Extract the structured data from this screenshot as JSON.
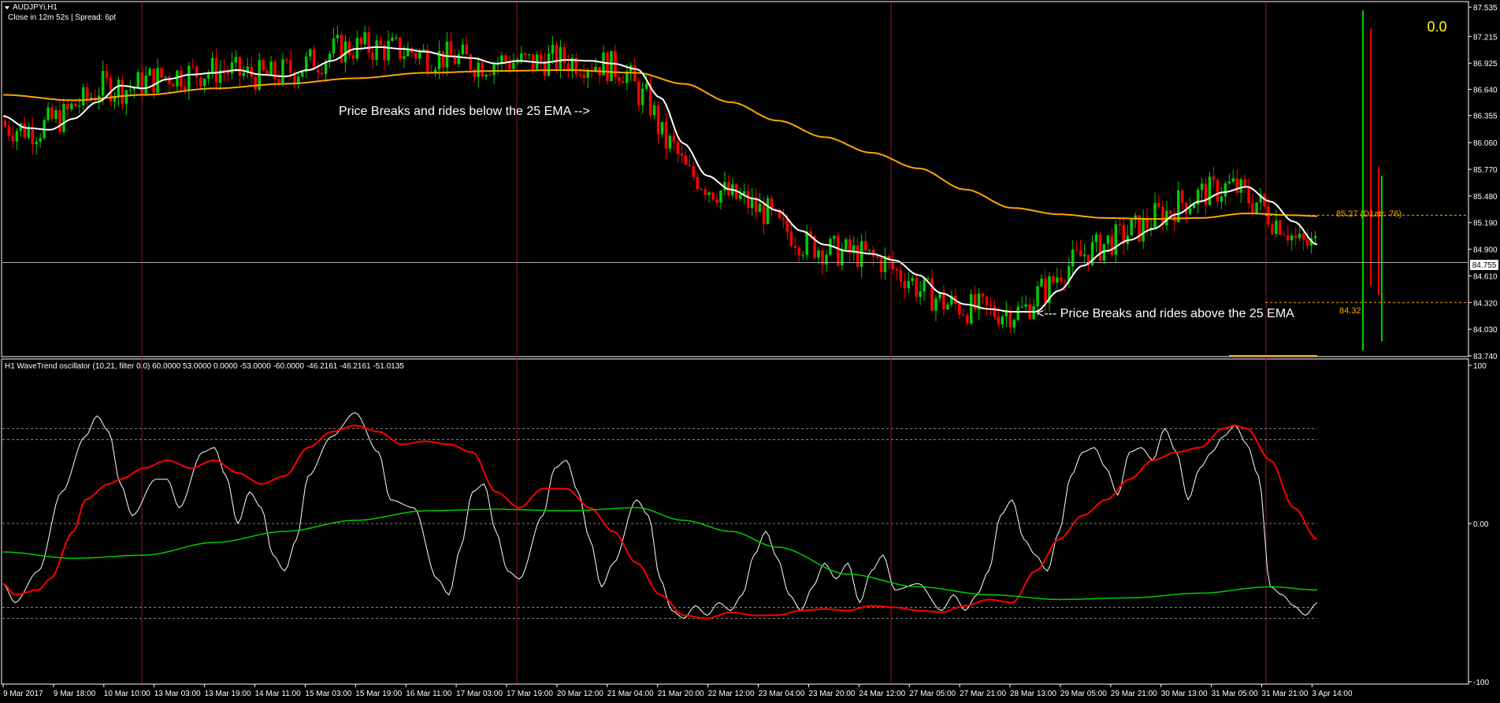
{
  "window": {
    "symbol_title": "AUDJPYi,H1",
    "info_line": "Close in 12m 52s | Spread: 6pt",
    "top_right_value": "0.0"
  },
  "annotations": {
    "break_below": "Price Breaks and rides below the 25 EMA -->",
    "break_above": "<--- Price Breaks and rides above the 25 EMA",
    "atr_label": "85.27  (D1atr: 76)",
    "low_level_label": "84.32"
  },
  "oscillator_header": "H1 WaveTrend oscillator (10,21, filter 0.0) 60.0000 53.0000 0.0000 -53.0000 -60.0000 -46.2161 -46.2161 -51.0135",
  "colors": {
    "background": "#000000",
    "bull_candle": "#00cc00",
    "bear_candle": "#ff0000",
    "ema25": "#ffffff",
    "ema_long": "#ffa500",
    "wt_fast": "#ffffff",
    "wt_slow": "#ff0000",
    "wt_trend": "#00cc00",
    "separator": "#8b1a1a",
    "accent_value": "#ffff00",
    "annotation_orange": "#ffa500"
  },
  "chart_data": [
    {
      "type": "candlestick",
      "title": "AUDJPYi,H1",
      "ylim": [
        83.74,
        87.535
      ],
      "y_ticks": [
        "87.535",
        "87.215",
        "86.925",
        "86.640",
        "86.355",
        "86.060",
        "85.770",
        "85.480",
        "85.190",
        "84.900",
        "84.610",
        "84.320",
        "84.030",
        "83.740"
      ],
      "current_price": "84.755",
      "current_price_value": 84.755,
      "level_upper": 85.27,
      "level_lower": 84.32,
      "x_labels": [
        "9 Mar 2017",
        "9 Mar 18:00",
        "10 Mar 10:00",
        "13 Mar 03:00",
        "13 Mar 19:00",
        "14 Mar 11:00",
        "15 Mar 03:00",
        "15 Mar 19:00",
        "16 Mar 11:00",
        "17 Mar 03:00",
        "17 Mar 19:00",
        "20 Mar 12:00",
        "21 Mar 04:00",
        "21 Mar 20:00",
        "22 Mar 12:00",
        "23 Mar 04:00",
        "23 Mar 20:00",
        "24 Mar 12:00",
        "27 Mar 05:00",
        "27 Mar 21:00",
        "28 Mar 13:00",
        "29 Mar 05:00",
        "29 Mar 21:00",
        "30 Mar 13:00",
        "31 Mar 05:00",
        "31 Mar 21:00",
        "3 Apr 14:00"
      ],
      "ema25_knots": [
        [
          0,
          86.35
        ],
        [
          2,
          86.22
        ],
        [
          4,
          86.2
        ],
        [
          6,
          86.32
        ],
        [
          8,
          86.5
        ],
        [
          10,
          86.68
        ],
        [
          12,
          86.65
        ],
        [
          14,
          86.75
        ],
        [
          16,
          86.8
        ],
        [
          18,
          86.82
        ],
        [
          20,
          86.85
        ],
        [
          22,
          86.8
        ],
        [
          24,
          86.78
        ],
        [
          26,
          86.85
        ],
        [
          28,
          86.95
        ],
        [
          30,
          87.08
        ],
        [
          32,
          87.1
        ],
        [
          34,
          87.08
        ],
        [
          36,
          87.05
        ],
        [
          38,
          87.0
        ],
        [
          40,
          86.98
        ],
        [
          42,
          86.92
        ],
        [
          44,
          86.95
        ],
        [
          46,
          86.93
        ],
        [
          48,
          86.96
        ],
        [
          50,
          86.95
        ],
        [
          52,
          86.92
        ],
        [
          54,
          86.86
        ],
        [
          56,
          86.55
        ],
        [
          58,
          86.05
        ],
        [
          60,
          85.7
        ],
        [
          62,
          85.55
        ],
        [
          64,
          85.45
        ],
        [
          66,
          85.32
        ],
        [
          68,
          85.1
        ],
        [
          70,
          84.95
        ],
        [
          72,
          84.88
        ],
        [
          74,
          84.85
        ],
        [
          76,
          84.78
        ],
        [
          78,
          84.62
        ],
        [
          80,
          84.42
        ],
        [
          82,
          84.3
        ],
        [
          84,
          84.25
        ],
        [
          86,
          84.22
        ],
        [
          88,
          84.22
        ],
        [
          90,
          84.45
        ],
        [
          92,
          84.72
        ],
        [
          94,
          84.88
        ],
        [
          96,
          85.0
        ],
        [
          98,
          85.12
        ],
        [
          100,
          85.28
        ],
        [
          102,
          85.42
        ],
        [
          104,
          85.52
        ],
        [
          106,
          85.58
        ],
        [
          108,
          85.42
        ],
        [
          110,
          85.2
        ],
        [
          112,
          84.95
        ]
      ],
      "ema_long_knots": [
        [
          0,
          86.58
        ],
        [
          6,
          86.52
        ],
        [
          12,
          86.58
        ],
        [
          18,
          86.65
        ],
        [
          24,
          86.7
        ],
        [
          30,
          86.76
        ],
        [
          36,
          86.82
        ],
        [
          42,
          86.84
        ],
        [
          48,
          86.85
        ],
        [
          54,
          86.82
        ],
        [
          58,
          86.7
        ],
        [
          62,
          86.5
        ],
        [
          66,
          86.3
        ],
        [
          70,
          86.12
        ],
        [
          74,
          85.95
        ],
        [
          78,
          85.78
        ],
        [
          82,
          85.55
        ],
        [
          86,
          85.35
        ],
        [
          90,
          85.28
        ],
        [
          94,
          85.24
        ],
        [
          98,
          85.23
        ],
        [
          102,
          85.24
        ],
        [
          106,
          85.29
        ],
        [
          110,
          85.27
        ],
        [
          112,
          85.26
        ]
      ]
    },
    {
      "type": "line",
      "title": "H1 WaveTrend oscillator (10,21, filter 0.0)",
      "ylim": [
        -100,
        100
      ],
      "y_ticks": [
        "100",
        "0.00",
        "-100"
      ],
      "levels": [
        60,
        53,
        0,
        -53,
        -60
      ],
      "series": [
        {
          "name": "wt1",
          "knots": [
            [
              0,
              -38
            ],
            [
              1,
              -50
            ],
            [
              3,
              -30
            ],
            [
              5,
              20
            ],
            [
              7,
              55
            ],
            [
              8,
              68
            ],
            [
              9,
              58
            ],
            [
              10,
              25
            ],
            [
              11,
              5
            ],
            [
              13,
              28
            ],
            [
              14,
              28
            ],
            [
              15,
              10
            ],
            [
              17,
              45
            ],
            [
              18,
              48
            ],
            [
              19,
              30
            ],
            [
              20,
              0
            ],
            [
              21,
              20
            ],
            [
              22,
              10
            ],
            [
              23,
              -20
            ],
            [
              24,
              -30
            ],
            [
              25,
              -10
            ],
            [
              26,
              30
            ],
            [
              28,
              55
            ],
            [
              30,
              70
            ],
            [
              32,
              45
            ],
            [
              33,
              15
            ],
            [
              35,
              10
            ],
            [
              37,
              -35
            ],
            [
              38,
              -45
            ],
            [
              39,
              -15
            ],
            [
              40,
              20
            ],
            [
              41,
              25
            ],
            [
              42,
              -5
            ],
            [
              43,
              -30
            ],
            [
              44,
              -35
            ],
            [
              46,
              5
            ],
            [
              47,
              35
            ],
            [
              48,
              40
            ],
            [
              49,
              20
            ],
            [
              50,
              -10
            ],
            [
              51,
              -40
            ],
            [
              52,
              -25
            ],
            [
              54,
              15
            ],
            [
              55,
              5
            ],
            [
              56,
              -35
            ],
            [
              57,
              -55
            ],
            [
              58,
              -60
            ],
            [
              59,
              -52
            ],
            [
              60,
              -58
            ],
            [
              61,
              -50
            ],
            [
              62,
              -55
            ],
            [
              63,
              -45
            ],
            [
              64,
              -20
            ],
            [
              65,
              -5
            ],
            [
              66,
              -22
            ],
            [
              67,
              -45
            ],
            [
              68,
              -55
            ],
            [
              69,
              -40
            ],
            [
              70,
              -25
            ],
            [
              71,
              -35
            ],
            [
              72,
              -25
            ],
            [
              73,
              -50
            ],
            [
              74,
              -30
            ],
            [
              75,
              -20
            ],
            [
              76,
              -42
            ],
            [
              78,
              -38
            ],
            [
              80,
              -55
            ],
            [
              81,
              -45
            ],
            [
              82,
              -55
            ],
            [
              83,
              -45
            ],
            [
              84,
              -30
            ],
            [
              85,
              5
            ],
            [
              86,
              15
            ],
            [
              87,
              -10
            ],
            [
              88,
              -20
            ],
            [
              89,
              -30
            ],
            [
              90,
              -5
            ],
            [
              91,
              30
            ],
            [
              92,
              45
            ],
            [
              93,
              48
            ],
            [
              94,
              35
            ],
            [
              95,
              18
            ],
            [
              96,
              45
            ],
            [
              97,
              48
            ],
            [
              98,
              40
            ],
            [
              99,
              60
            ],
            [
              100,
              45
            ],
            [
              101,
              15
            ],
            [
              102,
              35
            ],
            [
              103,
              45
            ],
            [
              104,
              55
            ],
            [
              105,
              62
            ],
            [
              106,
              50
            ],
            [
              107,
              30
            ],
            [
              108,
              -40
            ],
            [
              109,
              -45
            ],
            [
              110,
              -52
            ],
            [
              111,
              -58
            ],
            [
              112,
              -50
            ]
          ]
        },
        {
          "name": "wt2",
          "knots": [
            [
              0,
              -38
            ],
            [
              1,
              -45
            ],
            [
              3,
              -42
            ],
            [
              4,
              -35
            ],
            [
              6,
              -5
            ],
            [
              7,
              15
            ],
            [
              9,
              25
            ],
            [
              10,
              28
            ],
            [
              12,
              35
            ],
            [
              14,
              40
            ],
            [
              16,
              35
            ],
            [
              18,
              40
            ],
            [
              20,
              32
            ],
            [
              22,
              25
            ],
            [
              24,
              30
            ],
            [
              26,
              48
            ],
            [
              28,
              58
            ],
            [
              30,
              62
            ],
            [
              32,
              58
            ],
            [
              34,
              50
            ],
            [
              36,
              52
            ],
            [
              38,
              50
            ],
            [
              40,
              45
            ],
            [
              42,
              20
            ],
            [
              44,
              10
            ],
            [
              46,
              22
            ],
            [
              48,
              22
            ],
            [
              50,
              10
            ],
            [
              52,
              -5
            ],
            [
              54,
              -25
            ],
            [
              56,
              -45
            ],
            [
              58,
              -58
            ],
            [
              60,
              -60
            ],
            [
              62,
              -56
            ],
            [
              64,
              -58
            ],
            [
              66,
              -58
            ],
            [
              68,
              -55
            ],
            [
              70,
              -54
            ],
            [
              72,
              -55
            ],
            [
              74,
              -52
            ],
            [
              76,
              -53
            ],
            [
              78,
              -55
            ],
            [
              80,
              -56
            ],
            [
              82,
              -52
            ],
            [
              84,
              -48
            ],
            [
              86,
              -50
            ],
            [
              88,
              -30
            ],
            [
              90,
              -10
            ],
            [
              92,
              5
            ],
            [
              94,
              15
            ],
            [
              96,
              28
            ],
            [
              98,
              40
            ],
            [
              100,
              45
            ],
            [
              102,
              48
            ],
            [
              104,
              60
            ],
            [
              105,
              62
            ],
            [
              106,
              60
            ],
            [
              108,
              40
            ],
            [
              110,
              10
            ],
            [
              112,
              -10
            ]
          ]
        },
        {
          "name": "trend",
          "knots": [
            [
              0,
              -18
            ],
            [
              6,
              -22
            ],
            [
              12,
              -20
            ],
            [
              18,
              -12
            ],
            [
              24,
              -5
            ],
            [
              30,
              2
            ],
            [
              36,
              8
            ],
            [
              42,
              9
            ],
            [
              48,
              8
            ],
            [
              54,
              10
            ],
            [
              58,
              2
            ],
            [
              62,
              -5
            ],
            [
              66,
              -15
            ],
            [
              72,
              -32
            ],
            [
              78,
              -40
            ],
            [
              84,
              -45
            ],
            [
              90,
              -48
            ],
            [
              96,
              -47
            ],
            [
              102,
              -44
            ],
            [
              108,
              -40
            ],
            [
              112,
              -42
            ]
          ]
        }
      ]
    }
  ]
}
